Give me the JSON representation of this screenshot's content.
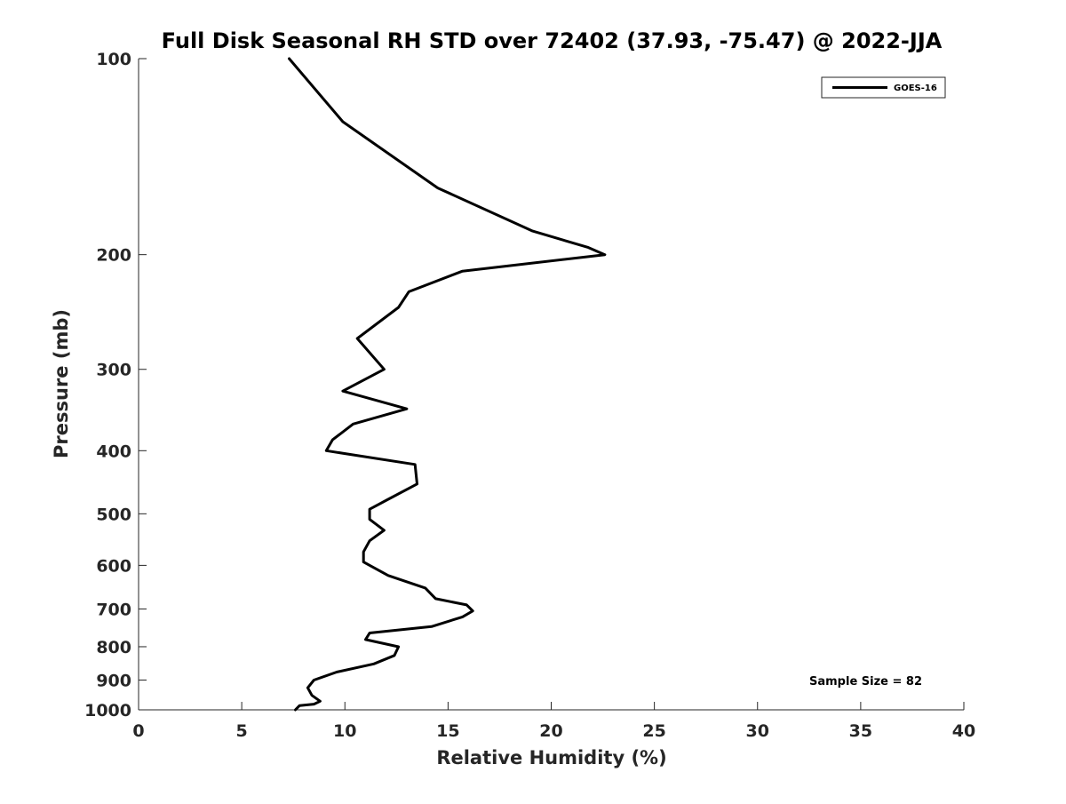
{
  "chart_data": {
    "type": "line",
    "title": "Full Disk Seasonal RH STD over 72402 (37.93, -75.47) @ 2022-JJA",
    "xlabel": "Relative Humidity (%)",
    "ylabel": "Pressure (mb)",
    "xlim": [
      0,
      40
    ],
    "ylim": [
      100,
      1000
    ],
    "y_scale": "log",
    "y_reversed": true,
    "x_ticks": [
      0,
      5,
      10,
      15,
      20,
      25,
      30,
      35,
      40
    ],
    "y_ticks": [
      100,
      200,
      300,
      400,
      500,
      600,
      700,
      800,
      900,
      1000
    ],
    "grid": false,
    "legend_position": "top-right",
    "annotation": "Sample Size = 82",
    "series": [
      {
        "name": "GOES-16",
        "color": "#000000",
        "points": [
          [
            7.3,
            100
          ],
          [
            9.9,
            125
          ],
          [
            14.5,
            158
          ],
          [
            19.1,
            184
          ],
          [
            21.8,
            195
          ],
          [
            22.6,
            200
          ],
          [
            15.7,
            212
          ],
          [
            13.1,
            228
          ],
          [
            12.6,
            241
          ],
          [
            10.6,
            269
          ],
          [
            11.9,
            300
          ],
          [
            9.9,
            324
          ],
          [
            13.0,
            345
          ],
          [
            10.4,
            364
          ],
          [
            9.4,
            385
          ],
          [
            9.1,
            400
          ],
          [
            13.4,
            420
          ],
          [
            13.5,
            450
          ],
          [
            12.1,
            475
          ],
          [
            11.2,
            492
          ],
          [
            11.2,
            510
          ],
          [
            11.9,
            530
          ],
          [
            11.2,
            550
          ],
          [
            10.9,
            572
          ],
          [
            10.9,
            593
          ],
          [
            12.1,
            622
          ],
          [
            13.9,
            650
          ],
          [
            14.4,
            675
          ],
          [
            15.9,
            690
          ],
          [
            16.2,
            705
          ],
          [
            15.7,
            720
          ],
          [
            14.2,
            745
          ],
          [
            11.2,
            762
          ],
          [
            11.0,
            780
          ],
          [
            12.6,
            800
          ],
          [
            12.4,
            825
          ],
          [
            11.4,
            850
          ],
          [
            9.6,
            875
          ],
          [
            8.5,
            900
          ],
          [
            8.2,
            925
          ],
          [
            8.4,
            950
          ],
          [
            8.8,
            970
          ],
          [
            8.5,
            980
          ],
          [
            7.8,
            985
          ],
          [
            7.6,
            1000
          ]
        ]
      }
    ]
  }
}
